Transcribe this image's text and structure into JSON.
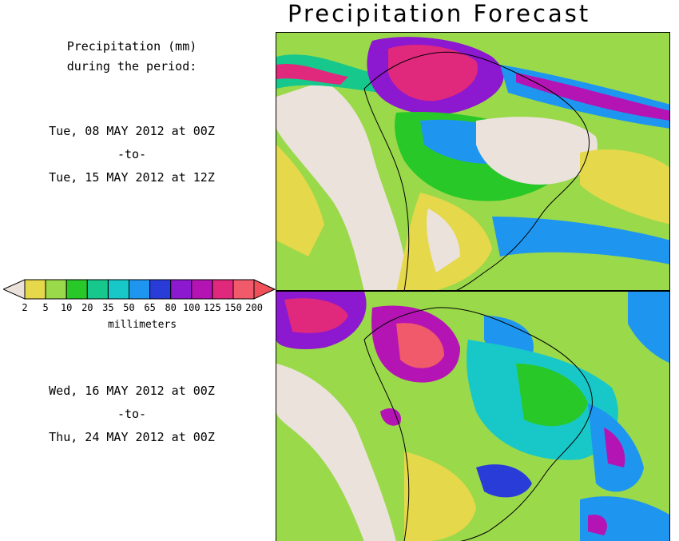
{
  "title": "Precipitation Forecast",
  "legend": {
    "header_line1": "Precipitation (mm)",
    "header_line2": "during the period:",
    "ticks": [
      "2",
      "5",
      "10",
      "20",
      "35",
      "50",
      "65",
      "80",
      "100",
      "125",
      "150",
      "200"
    ],
    "unit": "millimeters",
    "colors": [
      "#e5d84a",
      "#9ad94a",
      "#28c828",
      "#16c88c",
      "#18c8c8",
      "#1e96f0",
      "#2a3cd8",
      "#8c18d0",
      "#b414b4",
      "#e0287c",
      "#f05a6a"
    ],
    "below_color": "#ece2dc",
    "above_color": "#f0505a"
  },
  "periods": [
    {
      "from": "Tue, 08 MAY 2012 at 00Z",
      "to_label": "-to-",
      "until": "Tue, 15 MAY 2012 at 12Z"
    },
    {
      "from": "Wed, 16 MAY 2012 at 00Z",
      "to_label": "-to-",
      "until": "Thu, 24 MAY 2012 at 00Z"
    }
  ]
}
